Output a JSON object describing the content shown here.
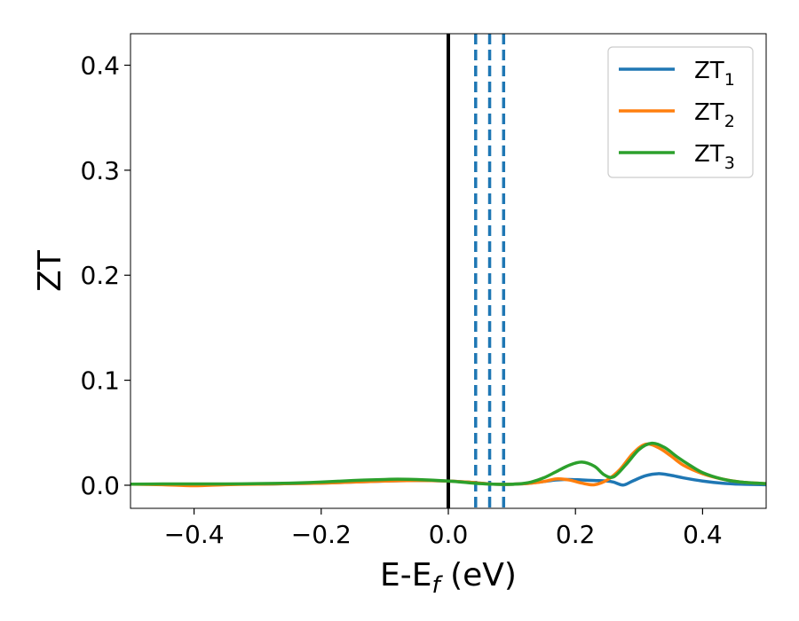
{
  "chart_data": {
    "type": "line",
    "xlabel": "E-E",
    "xlabel_sub": "f",
    "xlabel_unit": " (eV)",
    "ylabel": "ZT",
    "xlim": [
      -0.5,
      0.5
    ],
    "ylim": [
      -0.022,
      0.43
    ],
    "xticks": [
      -0.4,
      -0.2,
      0.0,
      0.2,
      0.4
    ],
    "xtick_labels": [
      "−0.4",
      "−0.2",
      "0.0",
      "0.2",
      "0.4"
    ],
    "yticks": [
      0.0,
      0.1,
      0.2,
      0.3,
      0.4
    ],
    "ytick_labels": [
      "0.0",
      "0.1",
      "0.2",
      "0.3",
      "0.4"
    ],
    "grid": false,
    "legend_position": "top-right",
    "vlines": [
      {
        "x": 0.0,
        "style": "solid",
        "color": "#000000"
      },
      {
        "x": 0.043,
        "style": "dashed",
        "color": "#1f77b4"
      },
      {
        "x": 0.065,
        "style": "dashed",
        "color": "#1f77b4"
      },
      {
        "x": 0.087,
        "style": "dashed",
        "color": "#1f77b4"
      }
    ],
    "series": [
      {
        "name": "ZT",
        "sub": "1",
        "color": "#1f77b4",
        "x": [
          -0.5,
          -0.45,
          -0.4,
          -0.35,
          -0.3,
          -0.25,
          -0.2,
          -0.15,
          -0.1,
          -0.05,
          0.0,
          0.03,
          0.05,
          0.07,
          0.09,
          0.11,
          0.13,
          0.15,
          0.17,
          0.19,
          0.21,
          0.23,
          0.25,
          0.26,
          0.275,
          0.29,
          0.31,
          0.33,
          0.35,
          0.37,
          0.4,
          0.43,
          0.46,
          0.5
        ],
        "y": [
          0.001,
          0.001,
          0.0005,
          0.001,
          0.001,
          0.0015,
          0.002,
          0.003,
          0.004,
          0.0045,
          0.004,
          0.003,
          0.002,
          0.001,
          0.0008,
          0.0012,
          0.002,
          0.0035,
          0.005,
          0.0055,
          0.005,
          0.0045,
          0.004,
          0.003,
          0.0002,
          0.004,
          0.009,
          0.011,
          0.0095,
          0.007,
          0.004,
          0.002,
          0.001,
          0.0005
        ]
      },
      {
        "name": "ZT",
        "sub": "2",
        "color": "#ff7f0e",
        "x": [
          -0.5,
          -0.45,
          -0.4,
          -0.35,
          -0.3,
          -0.25,
          -0.2,
          -0.15,
          -0.1,
          -0.05,
          0.0,
          0.03,
          0.05,
          0.07,
          0.09,
          0.11,
          0.13,
          0.15,
          0.17,
          0.19,
          0.21,
          0.23,
          0.25,
          0.27,
          0.29,
          0.31,
          0.33,
          0.35,
          0.37,
          0.4,
          0.43,
          0.46,
          0.5
        ],
        "y": [
          0.001,
          0.0005,
          -0.0005,
          0.0005,
          0.001,
          0.0015,
          0.002,
          0.003,
          0.004,
          0.0045,
          0.004,
          0.003,
          0.002,
          0.001,
          0.0008,
          0.0012,
          0.002,
          0.0035,
          0.006,
          0.005,
          0.002,
          0.0005,
          0.005,
          0.015,
          0.03,
          0.039,
          0.036,
          0.028,
          0.019,
          0.011,
          0.006,
          0.003,
          0.0015
        ]
      },
      {
        "name": "ZT",
        "sub": "3",
        "color": "#2ca02c",
        "x": [
          -0.5,
          -0.45,
          -0.4,
          -0.35,
          -0.3,
          -0.25,
          -0.2,
          -0.15,
          -0.1,
          -0.08,
          -0.05,
          0.0,
          0.03,
          0.05,
          0.07,
          0.09,
          0.11,
          0.13,
          0.15,
          0.17,
          0.19,
          0.21,
          0.23,
          0.245,
          0.26,
          0.28,
          0.3,
          0.32,
          0.34,
          0.36,
          0.38,
          0.4,
          0.43,
          0.46,
          0.5
        ],
        "y": [
          0.001,
          0.0012,
          0.0012,
          0.0012,
          0.0015,
          0.002,
          0.003,
          0.0045,
          0.0055,
          0.0058,
          0.0055,
          0.004,
          0.0025,
          0.0015,
          0.001,
          0.0008,
          0.0012,
          0.003,
          0.007,
          0.013,
          0.019,
          0.022,
          0.018,
          0.01,
          0.008,
          0.02,
          0.034,
          0.04,
          0.036,
          0.027,
          0.019,
          0.012,
          0.006,
          0.003,
          0.0015
        ]
      }
    ]
  }
}
